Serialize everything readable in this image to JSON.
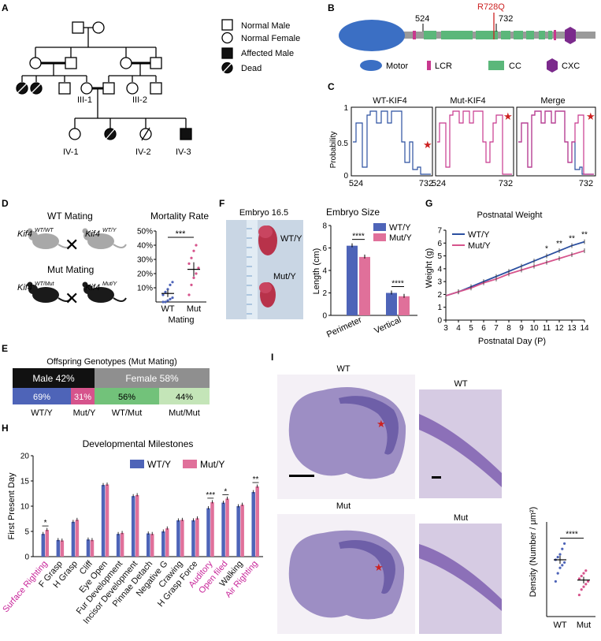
{
  "panels": {
    "A": {
      "letter": "A",
      "legend": [
        "Normal Male",
        "Normal Female",
        "Affected Male",
        "Dead"
      ],
      "labels": [
        "III-1",
        "III-2",
        "IV-1",
        "IV-2",
        "IV-3"
      ]
    },
    "B": {
      "letter": "B",
      "pos_start": "524",
      "pos_end": "732",
      "mutation": "R728Q",
      "legend": [
        "Motor",
        "LCR",
        "CC",
        "CXC"
      ],
      "colors": {
        "motor": "#3b6fc4",
        "lcr": "#c8388e",
        "cc": "#5bb77a",
        "cxc": "#7b2a8c",
        "mut": "#cc2222"
      }
    },
    "C": {
      "letter": "C",
      "titles": [
        "WT-KIF4",
        "Mut-KIF4",
        "Merge"
      ],
      "ylabel": "Probability",
      "yticks": [
        "0",
        "0.5",
        "1"
      ],
      "xticks": [
        "524",
        "732"
      ],
      "colors": {
        "wt": "#2b4fa0",
        "mut": "#c8388e"
      }
    },
    "D": {
      "letter": "D",
      "wt_mating": "WT Mating",
      "mut_mating": "Mut Mating",
      "gene": "Kif4",
      "sup": {
        "wt_f": "WT/WT",
        "wt_m": "WT/Y",
        "mut_f": "WT/Mut",
        "mut_m": "Mut/Y"
      },
      "cross": "✕",
      "chart_data": {
        "type": "scatter",
        "title": "Mortality Rate",
        "categories": [
          "WT",
          "Mut"
        ],
        "xlabel": "Mating",
        "yticks": [
          "10%",
          "20%",
          "30%",
          "40%",
          "50%"
        ],
        "ylim": [
          0,
          50
        ],
        "means": [
          6,
          23
        ],
        "sem": [
          2.5,
          5
        ],
        "points": {
          "WT": [
            0,
            0,
            1,
            2,
            3,
            5,
            7,
            9,
            12,
            14
          ],
          "Mut": [
            5,
            12,
            17,
            20,
            24,
            27,
            31,
            36,
            40
          ]
        },
        "significance": "***"
      }
    },
    "E": {
      "letter": "E",
      "title": "Offspring Genotypes (Mut Mating)",
      "male": "Male 42%",
      "female": "Female 58%",
      "segments": [
        {
          "pct": "69%",
          "label": "WT/Y",
          "color": "#4e64b8"
        },
        {
          "pct": "31%",
          "label": "Mut/Y",
          "color": "#d6548c"
        },
        {
          "pct": "56%",
          "label": "WT/Mut",
          "color": "#72c27a"
        },
        {
          "pct": "44%",
          "label": "Mut/Mut",
          "color": "#c4e5b8"
        }
      ]
    },
    "F": {
      "letter": "F",
      "photo_title": "Embryo 16.5",
      "photo_labels": [
        "WT/Y",
        "Mut/Y"
      ],
      "chart_data": {
        "type": "bar",
        "title": "Embryo Size",
        "categories": [
          "Perimeter",
          "Vertical"
        ],
        "series": [
          {
            "name": "WT/Y",
            "values": [
              6.2,
              2.0
            ],
            "color": "#4e64b8"
          },
          {
            "name": "Mut/Y",
            "values": [
              5.2,
              1.7
            ],
            "color": "#e0709a"
          }
        ],
        "ylabel": "Length (cm)",
        "yticks": [
          "0",
          "2",
          "4",
          "6",
          "8"
        ],
        "ylim": [
          0,
          8
        ],
        "significance": [
          "****",
          "****"
        ]
      }
    },
    "G": {
      "letter": "G",
      "chart_data": {
        "type": "line",
        "title": "Postnatal Weight",
        "x": [
          3,
          4,
          5,
          6,
          7,
          8,
          9,
          10,
          11,
          12,
          13,
          14
        ],
        "series": [
          {
            "name": "WT/Y",
            "values": [
              1.9,
              2.2,
              2.6,
              3.0,
              3.4,
              3.8,
              4.2,
              4.6,
              5.0,
              5.4,
              5.8,
              6.1
            ],
            "color": "#2b4fa0"
          },
          {
            "name": "Mut/Y",
            "values": [
              1.9,
              2.2,
              2.5,
              2.9,
              3.2,
              3.6,
              3.9,
              4.2,
              4.5,
              4.8,
              5.1,
              5.4
            ],
            "color": "#d6548c"
          }
        ],
        "xlabel": "Postnatal Day (P)",
        "ylabel": "Weight (g)",
        "xticks": [
          "3",
          "4",
          "5",
          "6",
          "7",
          "8",
          "9",
          "10",
          "11",
          "12",
          "13",
          "14"
        ],
        "yticks": [
          "0",
          "1",
          "2",
          "3",
          "4",
          "5",
          "6",
          "7"
        ],
        "ylim": [
          0,
          7
        ],
        "stars": [
          {
            "day": 11,
            "text": "*"
          },
          {
            "day": 12,
            "text": "**"
          },
          {
            "day": 13,
            "text": "**"
          },
          {
            "day": 14,
            "text": "**"
          }
        ]
      }
    },
    "H": {
      "letter": "H",
      "chart_data": {
        "type": "bar",
        "title": "Developmental Milestones",
        "ylabel": "First Present Day",
        "yticks": [
          "0",
          "5",
          "10",
          "15",
          "20"
        ],
        "ylim": [
          0,
          20
        ],
        "categories": [
          "Surface Righting",
          "F Grasp",
          "H Grasp",
          "Cliff",
          "Eye Open",
          "Fur Development",
          "Incisor Development",
          "Pinnae Detach",
          "Negative G",
          "Crawing",
          "H Grasp Force",
          "Auditory",
          "Open filed",
          "Walking",
          "Air Righting"
        ],
        "highlight": [
          0,
          11,
          12,
          14
        ],
        "series": [
          {
            "name": "WT/Y",
            "values": [
              4.5,
              3.3,
              6.9,
              3.4,
              14.2,
              4.5,
              12.0,
              4.6,
              5.0,
              7.2,
              7.2,
              9.6,
              10.7,
              10.0,
              12.8
            ],
            "color": "#4e64b8"
          },
          {
            "name": "Mut/Y",
            "values": [
              5.3,
              3.2,
              7.3,
              3.3,
              14.3,
              4.7,
              12.2,
              4.5,
              5.6,
              7.3,
              7.6,
              10.8,
              11.5,
              10.3,
              13.9
            ],
            "color": "#e0709a"
          }
        ],
        "significance": [
          {
            "index": 0,
            "text": "*"
          },
          {
            "index": 11,
            "text": "***"
          },
          {
            "index": 12,
            "text": "*"
          },
          {
            "index": 14,
            "text": "**"
          }
        ]
      }
    },
    "I": {
      "letter": "I",
      "labels": [
        "WT",
        "WT",
        "Mut",
        "Mut"
      ],
      "chart_data": {
        "type": "scatter",
        "categories": [
          "WT",
          "Mut"
        ],
        "ylabel": "Density (Number / μm²)",
        "means": [
          21,
          13.5
        ],
        "sem": [
          1.5,
          1.2
        ],
        "ylim": [
          0,
          35
        ],
        "points": {
          "WT": [
            13,
            16,
            18,
            19,
            20,
            21,
            22,
            23,
            25,
            27
          ],
          "Mut": [
            8,
            10,
            11,
            12,
            13,
            14,
            15,
            16,
            17
          ]
        },
        "significance": "****"
      }
    }
  }
}
